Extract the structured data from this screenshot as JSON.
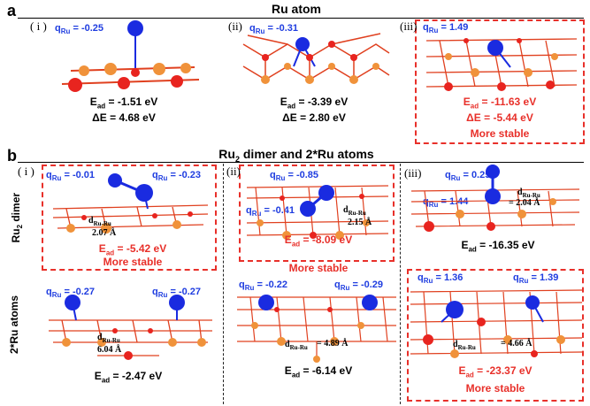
{
  "panel_a": {
    "letter": "a",
    "title": "Ru atom",
    "cases": [
      {
        "index": "( i )",
        "q_prefix": "q",
        "q_sub": "Ru",
        "q_value": " = -0.25",
        "ead_prefix": "E",
        "ead_sub": "ad",
        "ead_value": " = -1.51 eV",
        "de_label": "ΔE = 4.68 eV"
      },
      {
        "index": "(ii)",
        "q_prefix": "q",
        "q_sub": "Ru",
        "q_value": " = -0.31",
        "ead_prefix": "E",
        "ead_sub": "ad",
        "ead_value": " = -3.39 eV",
        "de_label": "ΔE = 2.80 eV"
      },
      {
        "index": "(iii)",
        "q_prefix": "q",
        "q_sub": "Ru",
        "q_value": " = 1.49",
        "ead_prefix": "E",
        "ead_sub": "ad",
        "ead_value": " = -11.63 eV",
        "de_label": "ΔE = -5.44 eV",
        "note": "More stable"
      }
    ]
  },
  "panel_b": {
    "letter": "b",
    "title_pre": "Ru",
    "title_sub": "2",
    "title_post": " dimer and 2*Ru atoms",
    "row_labels": {
      "dimer_pre": "Ru",
      "dimer_sub": "2",
      "dimer_post": " dimer",
      "atoms": "2*Ru atoms"
    },
    "col_i": {
      "index": "( i )",
      "dimer": {
        "q1": " = -0.01",
        "q2": " = -0.23",
        "d_value": "2.07 Å",
        "ead_value": " = -5.42 eV",
        "note": "More stable"
      },
      "atoms": {
        "q1": " = -0.27",
        "q2": " = -0.27",
        "d_value": "6.04 Å",
        "ead_value": " = -2.47 eV"
      }
    },
    "col_ii": {
      "index": "(ii)",
      "dimer": {
        "q1": " = -0.85",
        "q2": " = -0.41",
        "d_value": "2.15 Å",
        "ead_value": " = -8.09 eV",
        "note": "More stable"
      },
      "atoms": {
        "q1": " = -0.22",
        "q2": " = -0.29",
        "d_value": "= 4.89 Å",
        "ead_value": " = -6.14 eV"
      }
    },
    "col_iii": {
      "index": "(iii)",
      "dimer": {
        "q1": " = 0.25",
        "q2": " = 1.44",
        "d_value": "= 2.04 Å",
        "ead_value": " = -16.35 eV"
      },
      "atoms": {
        "q1": " = 1.36",
        "q2": " = 1.39",
        "d_value": "= 4.66 Å",
        "ead_value": " = -23.37 eV",
        "note": "More stable"
      }
    }
  },
  "symbols": {
    "q": "q",
    "q_sub": "Ru",
    "e": "E",
    "e_sub": "ad",
    "d": "d",
    "d_sub": "Ru-Ru"
  },
  "colors": {
    "ru": "#1a2be0",
    "red_atom": "#e8241f",
    "orange_atom": "#f0923a",
    "bond": "#e0401f",
    "highlight": "#e8302a",
    "charge_text": "#1f3de0"
  }
}
